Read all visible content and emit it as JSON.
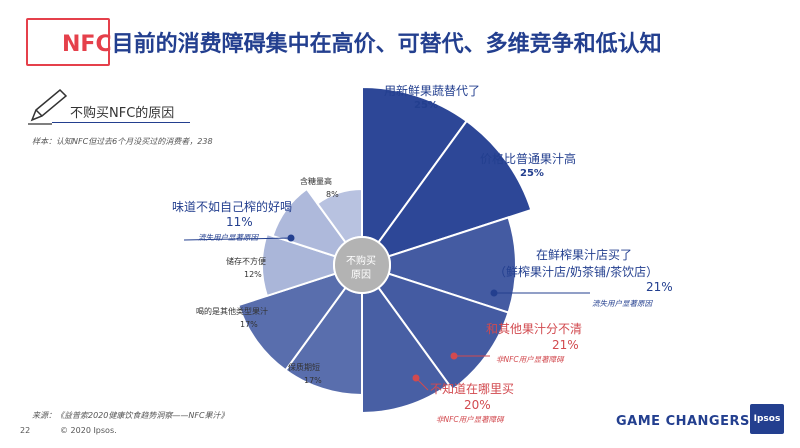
{
  "header": {
    "title_prefix": "NFC",
    "title_rest": "目前的消费障碍集中在高价、可替代、多维竞争和低认知"
  },
  "section": {
    "title": "不购买NFC的原因",
    "sample": "样本：认知NFC但过去6个月没买过的消费者，238"
  },
  "footer": {
    "source": "来源：《益普索2020健康饮食趋势洞察——NFC果汁》",
    "page": "22",
    "copyright": "© 2020 Ipsos.",
    "brand": "GAME CHANGERS",
    "logo": "Ipsos"
  },
  "chart_data": {
    "type": "polar-area",
    "center_label": "不购买\n原因",
    "categories": [
      {
        "name": "用新鲜果蔬替代了",
        "value": 25,
        "pct": "25%"
      },
      {
        "name": "价格比普通果汁高",
        "value": 25,
        "pct": "25%"
      },
      {
        "name": "在鲜榨果汁店买了\n（鲜榨果汁店/奶茶铺/茶饮店）",
        "value": 21,
        "pct": "21%",
        "tag": "流失用户显著原因"
      },
      {
        "name": "和其他果汁分不清",
        "value": 21,
        "pct": "21%",
        "tag": "非NFC用户显著障碍"
      },
      {
        "name": "不知道在哪里买",
        "value": 20,
        "pct": "20%",
        "tag": "非NFC用户显著障碍"
      },
      {
        "name": "保质期短",
        "value": 17,
        "pct": "17%"
      },
      {
        "name": "喝的是其他类型果汁",
        "value": 17,
        "pct": "17%"
      },
      {
        "name": "储存不方便",
        "value": 12,
        "pct": "12%"
      },
      {
        "name": "味道不如自己榨的好喝",
        "value": 11,
        "pct": "11%",
        "tag": "流失用户显著原因"
      },
      {
        "name": "含糖量高",
        "value": 8,
        "pct": "8%"
      }
    ],
    "colors": {
      "fill_dark": "#2d4797",
      "fill_light": "#7e90c6",
      "center": "#b3b3b3",
      "red": "#d24a4f",
      "blue": "#233f8f"
    }
  }
}
